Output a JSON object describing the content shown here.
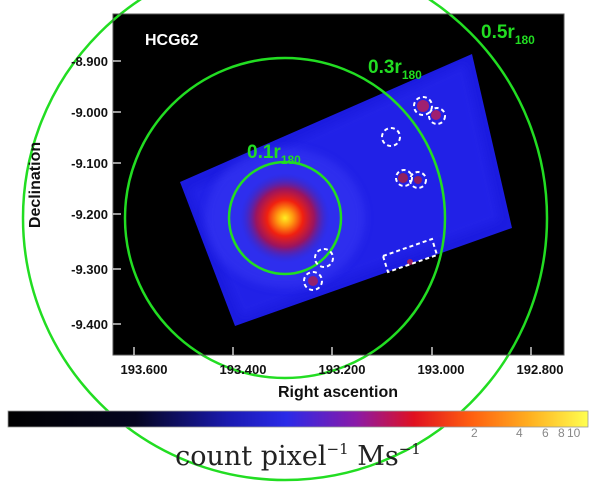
{
  "image": {
    "object_label": "HCG62",
    "x_axis_label": "Right ascention",
    "y_axis_label": "Declination",
    "x_ticks": [
      "193.600",
      "193.400",
      "193.200",
      "193.000",
      "192.800"
    ],
    "y_ticks": [
      "-8.900",
      "-9.000",
      "-9.100",
      "-9.200",
      "-9.300",
      "-9.400"
    ],
    "circles": [
      {
        "label_main": "0.1r",
        "label_sub": "180"
      },
      {
        "label_main": "0.3r",
        "label_sub": "180"
      },
      {
        "label_main": "0.5r",
        "label_sub": "180"
      }
    ],
    "colors": {
      "circle_green": "#22dd22",
      "background": "#000000",
      "source_marker": "#ffffff"
    }
  },
  "colorbar": {
    "tick_labels": [
      "2",
      "4",
      "6",
      "8",
      "10"
    ],
    "title_base": "count pixel",
    "title_exp1": "−1",
    "title_mid": " Ms",
    "title_exp2": "−1"
  }
}
